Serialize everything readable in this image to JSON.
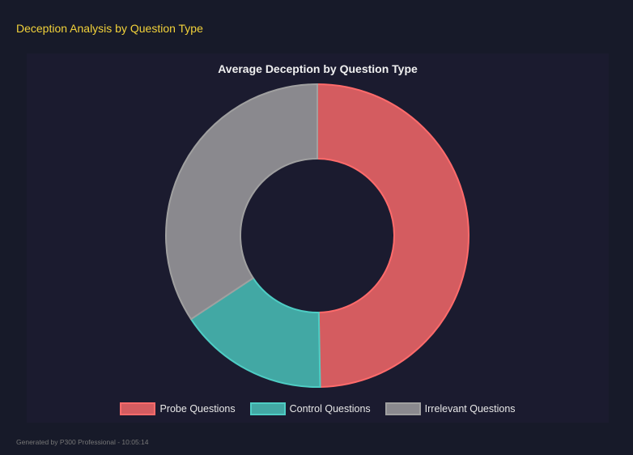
{
  "header": {
    "title": "Deception Analysis by Question Type"
  },
  "footer": {
    "text": "Generated by P300 Professional - 10:05:14"
  },
  "chart_data": {
    "type": "doughnut",
    "title": "Average Deception by Question Type",
    "categories": [
      "Probe Questions",
      "Control Questions",
      "Irrelevant Questions"
    ],
    "values": [
      49.7,
      16.0,
      34.3
    ],
    "colors": [
      "#d45c60",
      "#42a8a4",
      "#8a898e"
    ],
    "border_colors": [
      "#ff6b6b",
      "#4ecdc4",
      "#a0a0a0"
    ],
    "legend": "bottom"
  }
}
